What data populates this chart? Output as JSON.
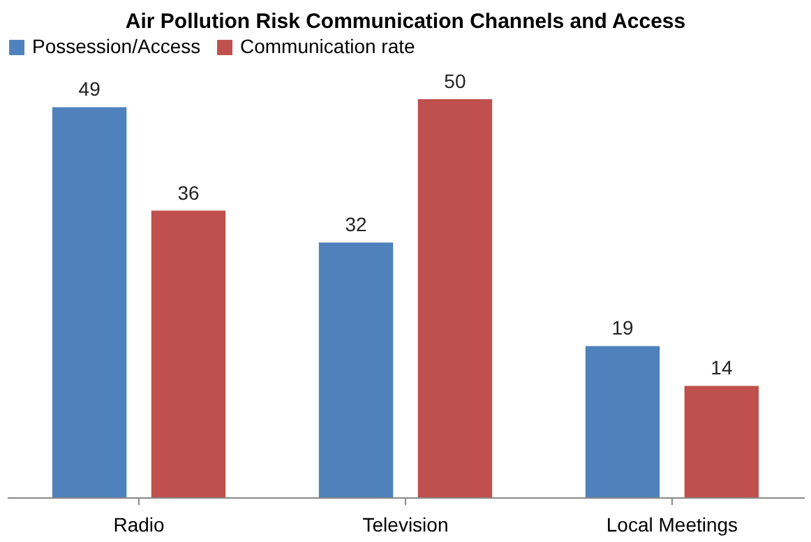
{
  "chart_data": {
    "type": "bar",
    "title": "Air Pollution Risk Communication Channels and Access",
    "categories": [
      "Radio",
      "Television",
      "Local Meetings"
    ],
    "series": [
      {
        "name": "Possession/Access",
        "color": "#4f81bd",
        "values": [
          49,
          32,
          19
        ]
      },
      {
        "name": "Communication rate",
        "color": "#c0504d",
        "values": [
          36,
          50,
          14
        ]
      }
    ],
    "data_labels": true,
    "tick_labels": "x",
    "legend": "top",
    "grid": false
  }
}
